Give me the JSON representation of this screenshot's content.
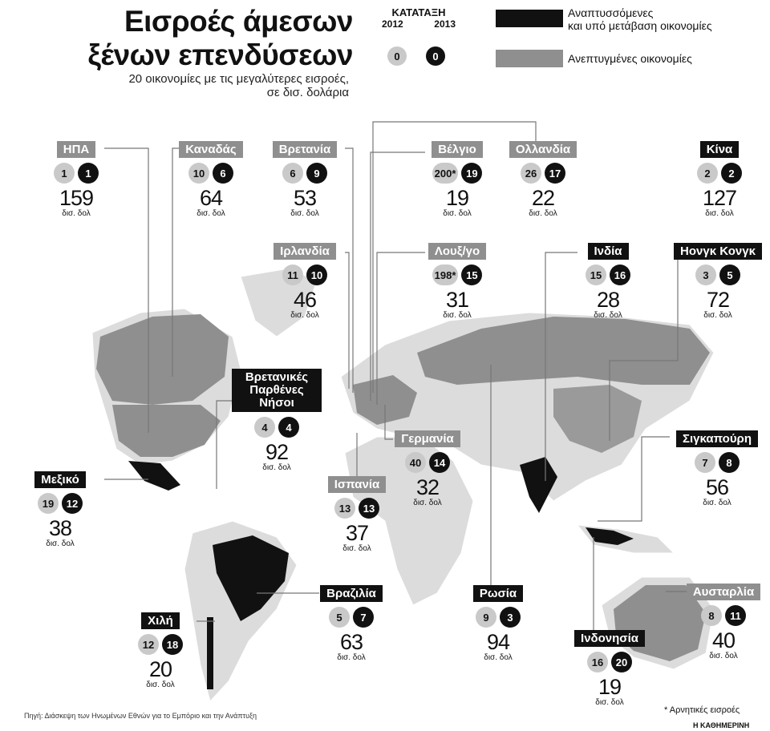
{
  "header": {
    "title_line1": "Εισροές άμεσων",
    "title_line2": "ξένων επενδύσεων",
    "subtitle_line1": "20 οικονομίες με τις μεγαλύτερες εισροές,",
    "subtitle_line2": "σε δισ. δολάρια"
  },
  "legend": {
    "rank_title": "ΚΑΤΑΤΑΞΗ",
    "year1": "2012",
    "year2": "2013",
    "sample": "0",
    "emerging_line1": "Αναπτυσσόμενες",
    "emerging_line2": "και υπό μετάβαση οικονομίες",
    "developed": "Ανεπτυγμένες οικονομίες",
    "colors": {
      "emerging": "#111111",
      "developed": "#8f8f8f",
      "rank2012": "#c9c9c9",
      "rank2013": "#111111"
    }
  },
  "unit": "δισ. δολ",
  "countries": [
    {
      "name": "ΗΠΑ",
      "type": "developed",
      "rank2012": "1",
      "rank2013": "1",
      "value": "159"
    },
    {
      "name": "Καναδάς",
      "type": "developed",
      "rank2012": "10",
      "rank2013": "6",
      "value": "64"
    },
    {
      "name": "Βρετανία",
      "type": "developed",
      "rank2012": "6",
      "rank2013": "9",
      "value": "53"
    },
    {
      "name": "Βέλγιο",
      "type": "developed",
      "rank2012": "200*",
      "rank2013": "19",
      "value": "19"
    },
    {
      "name": "Ολλανδία",
      "type": "developed",
      "rank2012": "26",
      "rank2013": "17",
      "value": "22"
    },
    {
      "name": "Κίνα",
      "type": "emerging",
      "rank2012": "2",
      "rank2013": "2",
      "value": "127"
    },
    {
      "name": "Ιρλανδία",
      "type": "developed",
      "rank2012": "11",
      "rank2013": "10",
      "value": "46"
    },
    {
      "name": "Λουξ/γο",
      "type": "developed",
      "rank2012": "198*",
      "rank2013": "15",
      "value": "31"
    },
    {
      "name": "Ινδία",
      "type": "emerging",
      "rank2012": "15",
      "rank2013": "16",
      "value": "28"
    },
    {
      "name": "Hονγκ Κονγκ",
      "type": "emerging",
      "rank2012": "3",
      "rank2013": "5",
      "value": "72"
    },
    {
      "name": "Βρετανικές Παρθένες Νήσοι",
      "type": "emerging",
      "rank2012": "4",
      "rank2013": "4",
      "value": "92"
    },
    {
      "name": "Γερμανία",
      "type": "developed",
      "rank2012": "40",
      "rank2013": "14",
      "value": "32"
    },
    {
      "name": "Σιγκαπούρη",
      "type": "emerging",
      "rank2012": "7",
      "rank2013": "8",
      "value": "56"
    },
    {
      "name": "Μεξικό",
      "type": "emerging",
      "rank2012": "19",
      "rank2013": "12",
      "value": "38"
    },
    {
      "name": "Ισπανία",
      "type": "developed",
      "rank2012": "13",
      "rank2013": "13",
      "value": "37"
    },
    {
      "name": "Βραζιλία",
      "type": "emerging",
      "rank2012": "5",
      "rank2013": "7",
      "value": "63"
    },
    {
      "name": "Ρωσία",
      "type": "emerging",
      "rank2012": "9",
      "rank2013": "3",
      "value": "94"
    },
    {
      "name": "Αυσταρλία",
      "type": "developed",
      "rank2012": "8",
      "rank2013": "11",
      "value": "40"
    },
    {
      "name": "Χιλή",
      "type": "emerging",
      "rank2012": "12",
      "rank2013": "18",
      "value": "20"
    },
    {
      "name": "Ινδονησία",
      "type": "emerging",
      "rank2012": "16",
      "rank2013": "20",
      "value": "19"
    }
  ],
  "footer": {
    "source": "Πηγή: Διάσκεψη των Ηνωμένων Εθνών για το Εμπόριο και την Ανάπτυξη",
    "note": "* Αρνητικές εισροές",
    "brand": "Η ΚΑΘΗΜΕΡΙΝΗ"
  }
}
